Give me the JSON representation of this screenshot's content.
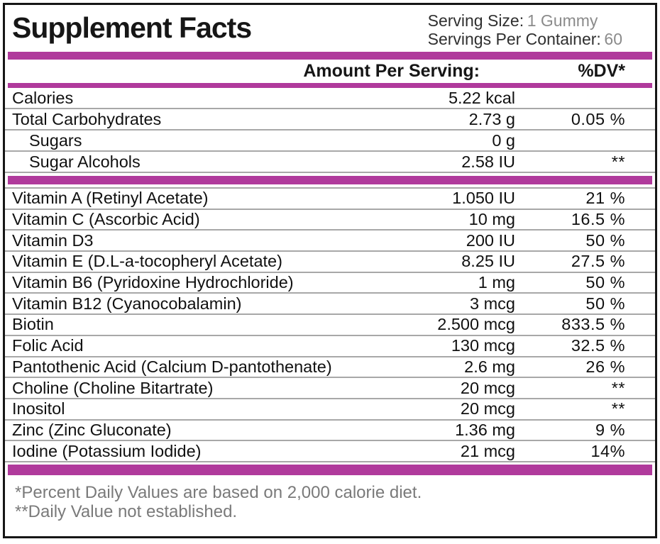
{
  "label": {
    "title": "Supplement Facts",
    "serving": {
      "size_label": "Serving Size:",
      "size_value": "1 Gummy",
      "container_label": "Servings Per Container:",
      "container_value": "60"
    },
    "columns": {
      "amount_header": "Amount Per Serving:",
      "dv_header": "%DV*"
    },
    "macro_rows": [
      {
        "name": "Calories",
        "indent": false,
        "amount": "5.22 kcal",
        "dv": ""
      },
      {
        "name": "Total Carbohydrates",
        "indent": false,
        "amount": "2.73 g",
        "dv": "0.05 %"
      },
      {
        "name": "Sugars",
        "indent": true,
        "amount": "0 g",
        "dv": ""
      },
      {
        "name": "Sugar Alcohols",
        "indent": true,
        "amount": "2.58 IU",
        "dv": "**"
      }
    ],
    "nutrient_rows": [
      {
        "name": "Vitamin A (Retinyl Acetate)",
        "indent": false,
        "amount": "1.050 IU",
        "dv": "21 %"
      },
      {
        "name": "Vitamin C (Ascorbic Acid)",
        "indent": false,
        "amount": "10 mg",
        "dv": "16.5 %"
      },
      {
        "name": "Vitamin D3",
        "indent": false,
        "amount": "200 IU",
        "dv": "50 %"
      },
      {
        "name": "Vitamin E (D.L-a-tocopheryl Acetate)",
        "indent": false,
        "amount": "8.25 IU",
        "dv": "27.5 %"
      },
      {
        "name": "Vitamin B6 (Pyridoxine Hydrochloride)",
        "indent": false,
        "amount": "1 mg",
        "dv": "50 %"
      },
      {
        "name": "Vitamin B12 (Cyanocobalamin)",
        "indent": false,
        "amount": "3 mcg",
        "dv": "50 %"
      },
      {
        "name": "Biotin",
        "indent": false,
        "amount": "2.500 mcg",
        "dv": "833.5 %"
      },
      {
        "name": "Folic Acid",
        "indent": false,
        "amount": "130 mcg",
        "dv": "32.5 %"
      },
      {
        "name": "Pantothenic Acid (Calcium D-pantothenate)",
        "indent": false,
        "amount": "2.6 mg",
        "dv": "26 %"
      },
      {
        "name": "Choline (Choline Bitartrate)",
        "indent": false,
        "amount": "20 mcg",
        "dv": "**"
      },
      {
        "name": "Inositol",
        "indent": false,
        "amount": "20 mcg",
        "dv": "**"
      },
      {
        "name": "Zinc (Zinc Gluconate)",
        "indent": false,
        "amount": "1.36 mg",
        "dv": "9 %"
      },
      {
        "name": "Iodine (Potassium Iodide)",
        "indent": false,
        "amount": "21 mcg",
        "dv": "14%"
      }
    ],
    "footnotes": [
      "*Percent Daily Values are based on 2,000 calorie diet.",
      "**Daily Value not established."
    ],
    "colors": {
      "accent": "#b03a9c",
      "separator": "#a8a8a8",
      "muted_text": "#7a7a7a"
    }
  }
}
